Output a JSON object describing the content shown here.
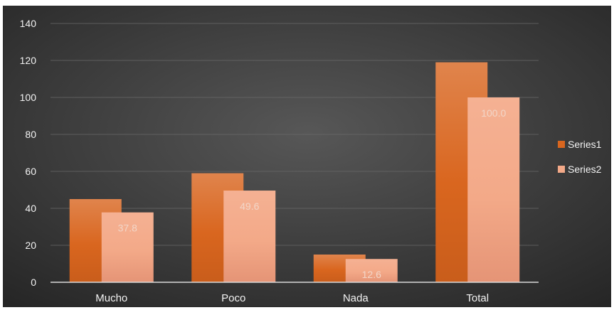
{
  "chart_data": {
    "type": "bar",
    "categories": [
      "Mucho",
      "Poco",
      "Nada",
      "Total"
    ],
    "series": [
      {
        "name": "Series1",
        "values": [
          45,
          59,
          15,
          119
        ],
        "color": "#d9661f",
        "data_labels": false
      },
      {
        "name": "Series2",
        "values": [
          37.8,
          49.6,
          12.6,
          100.0
        ],
        "color": "#f3a988",
        "data_labels": true
      }
    ],
    "y_ticks": [
      "0",
      "20",
      "40",
      "60",
      "80",
      "100",
      "120",
      "140"
    ],
    "ylim": [
      0,
      140
    ],
    "grid": true,
    "legend": "right",
    "background_colors": [
      "#575757",
      "#262626"
    ],
    "text_color": "#f2f2f2"
  }
}
